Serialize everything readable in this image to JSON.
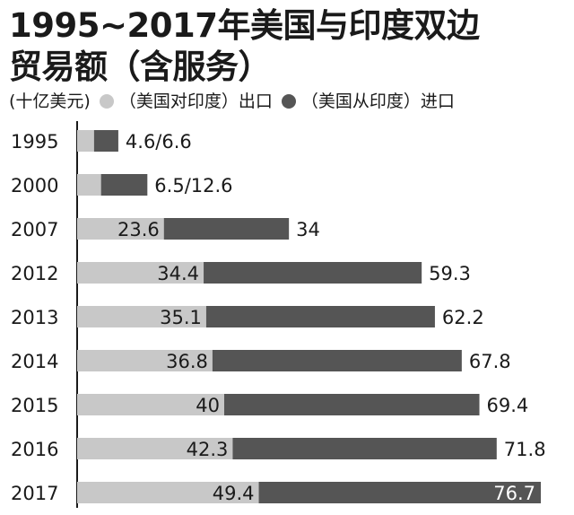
{
  "chart_data": {
    "type": "bar",
    "stacked": true,
    "orientation": "horizontal",
    "title_line1": "1995~2017年美国与印度双边",
    "title_line2": "贸易额（含服务）",
    "unit": "(十亿美元)",
    "categories": [
      "1995",
      "2000",
      "2007",
      "2012",
      "2013",
      "2014",
      "2015",
      "2016",
      "2017"
    ],
    "series": [
      {
        "name": "（美国对印度）出口",
        "color": "#c8c8c8",
        "values": [
          4.6,
          6.5,
          23.6,
          34.4,
          35.1,
          36.8,
          40,
          42.3,
          49.4
        ]
      },
      {
        "name": "（美国从印度）进口",
        "color": "#555555",
        "values": [
          6.6,
          12.6,
          34,
          59.3,
          62.2,
          67.8,
          69.4,
          71.8,
          76.7
        ]
      }
    ],
    "value_labels": [
      {
        "export": "4.6/6.6",
        "import": ""
      },
      {
        "export": "6.5/12.6",
        "import": ""
      },
      {
        "export": "23.6",
        "import": "34"
      },
      {
        "export": "34.4",
        "import": "59.3"
      },
      {
        "export": "35.1",
        "import": "62.2"
      },
      {
        "export": "36.8",
        "import": "67.8"
      },
      {
        "export": "40",
        "import": "69.4"
      },
      {
        "export": "42.3",
        "import": "71.8"
      },
      {
        "export": "49.4",
        "import": "76.7"
      }
    ],
    "xlim": [
      0,
      126.1
    ],
    "grid": false,
    "legend_position": "top"
  }
}
